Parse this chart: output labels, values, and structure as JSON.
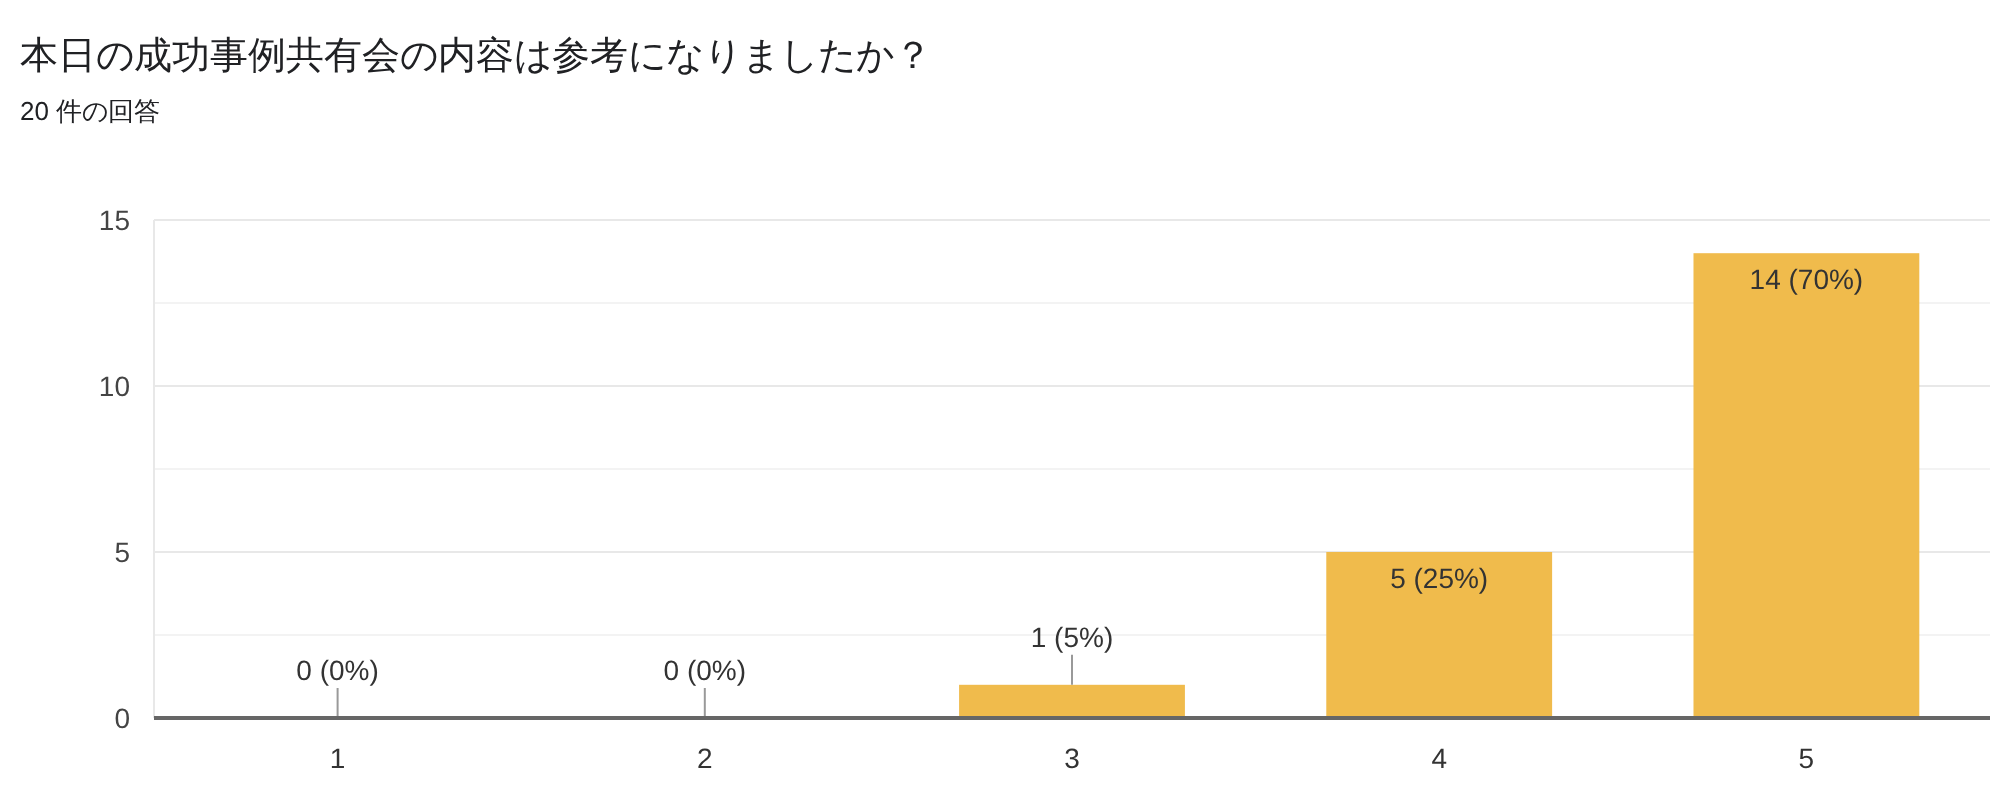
{
  "chart_data": {
    "type": "bar",
    "title": "本日の成功事例共有会の内容は参考になりましたか？",
    "subtitle": "20 件の回答",
    "categories": [
      "1",
      "2",
      "3",
      "4",
      "5"
    ],
    "values": [
      0,
      0,
      1,
      5,
      14
    ],
    "value_labels": [
      "0 (0%)",
      "0 (0%)",
      "1 (5%)",
      "5 (25%)",
      "14 (70%)"
    ],
    "color": "#f0bb4c",
    "ylim": [
      0,
      15
    ],
    "yticks": [
      0,
      {
        "value": 2.5,
        "label": null
      },
      5,
      {
        "value": 7.5,
        "label": null
      },
      10,
      {
        "value": 12.5,
        "label": null
      },
      15
    ],
    "grid": "y"
  }
}
